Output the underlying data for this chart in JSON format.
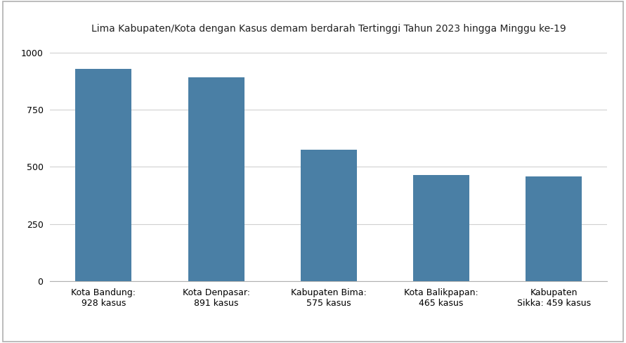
{
  "title": "Lima Kabupaten/Kota dengan Kasus demam berdarah Tertinggi Tahun 2023 hingga Minggu ke-19",
  "categories": [
    "Kota Bandung:\n928 kasus",
    "Kota Denpasar:\n891 kasus",
    "Kabupaten Bima:\n575 kasus",
    "Kota Balikpapan:\n465 kasus",
    "Kabupaten\nSikka: 459 kasus"
  ],
  "values": [
    928,
    891,
    575,
    465,
    459
  ],
  "bar_color": "#4a7fa5",
  "ylim": [
    0,
    1050
  ],
  "yticks": [
    0,
    250,
    500,
    750,
    1000
  ],
  "background_color": "#ffffff",
  "grid_color": "#d0d0d0",
  "title_fontsize": 10,
  "tick_fontsize": 9,
  "border_color": "#b0b0b0",
  "bar_width": 0.5
}
